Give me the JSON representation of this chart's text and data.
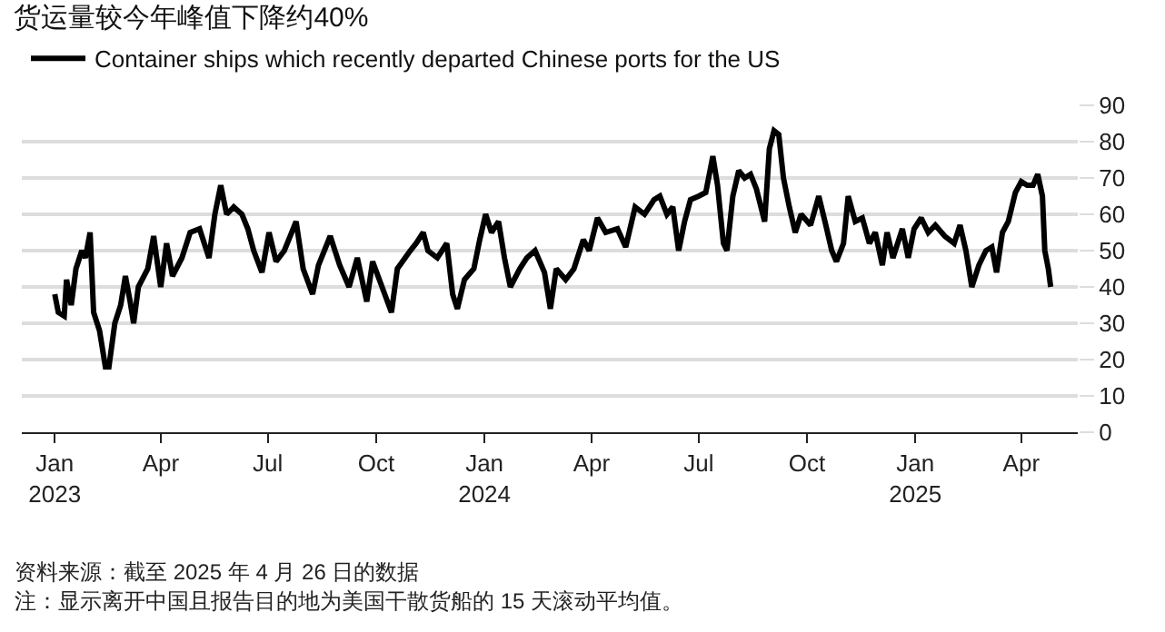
{
  "chart_data": {
    "type": "line",
    "title": "货运量较今年峰值下降约40%",
    "x": [
      "2023-01-01",
      "2023-01-04",
      "2023-01-09",
      "2023-01-11",
      "2023-01-15",
      "2023-01-19",
      "2023-01-24",
      "2023-01-27",
      "2023-01-31",
      "2023-02-03",
      "2023-02-08",
      "2023-02-13",
      "2023-02-16",
      "2023-02-21",
      "2023-02-26",
      "2023-03-02",
      "2023-03-06",
      "2023-03-09",
      "2023-03-13",
      "2023-03-21",
      "2023-03-26",
      "2023-04-01",
      "2023-04-06",
      "2023-04-11",
      "2023-04-19",
      "2023-04-26",
      "2023-05-04",
      "2023-05-12",
      "2023-05-17",
      "2023-05-22",
      "2023-05-27",
      "2023-06-02",
      "2023-06-09",
      "2023-06-14",
      "2023-06-19",
      "2023-06-26",
      "2023-07-02",
      "2023-07-08",
      "2023-07-15",
      "2023-07-25",
      "2023-07-31",
      "2023-08-08",
      "2023-08-13",
      "2023-08-23",
      "2023-08-31",
      "2023-09-08",
      "2023-09-15",
      "2023-09-23",
      "2023-09-28",
      "2023-10-06",
      "2023-10-14",
      "2023-10-19",
      "2023-10-30",
      "2023-11-04",
      "2023-11-10",
      "2023-11-14",
      "2023-11-22",
      "2023-11-30",
      "2023-12-05",
      "2023-12-09",
      "2023-12-15",
      "2023-12-23",
      "2023-12-28",
      "2024-01-02",
      "2024-01-07",
      "2024-01-13",
      "2024-01-18",
      "2024-01-23",
      "2024-01-31",
      "2024-02-06",
      "2024-02-13",
      "2024-02-21",
      "2024-02-26",
      "2024-03-02",
      "2024-03-10",
      "2024-03-17",
      "2024-03-25",
      "2024-03-30",
      "2024-04-06",
      "2024-04-13",
      "2024-04-23",
      "2024-04-30",
      "2024-05-08",
      "2024-05-16",
      "2024-05-24",
      "2024-05-29",
      "2024-06-04",
      "2024-06-09",
      "2024-06-14",
      "2024-06-19",
      "2024-06-24",
      "2024-07-01",
      "2024-07-07",
      "2024-07-13",
      "2024-07-17",
      "2024-07-22",
      "2024-07-25",
      "2024-07-30",
      "2024-08-04",
      "2024-08-09",
      "2024-08-14",
      "2024-08-19",
      "2024-08-26",
      "2024-08-30",
      "2024-09-03",
      "2024-09-07",
      "2024-09-11",
      "2024-09-16",
      "2024-09-21",
      "2024-09-26",
      "2024-10-04",
      "2024-10-11",
      "2024-10-17",
      "2024-10-22",
      "2024-10-26",
      "2024-11-01",
      "2024-11-05",
      "2024-11-11",
      "2024-11-17",
      "2024-11-23",
      "2024-11-28",
      "2024-12-04",
      "2024-12-08",
      "2024-12-13",
      "2024-12-21",
      "2024-12-26",
      "2024-12-31",
      "2025-01-06",
      "2025-01-12",
      "2025-01-18",
      "2025-01-26",
      "2025-02-03",
      "2025-02-08",
      "2025-02-13",
      "2025-02-18",
      "2025-02-24",
      "2025-03-02",
      "2025-03-07",
      "2025-03-11",
      "2025-03-16",
      "2025-03-21",
      "2025-03-27",
      "2025-04-01",
      "2025-04-06",
      "2025-04-11",
      "2025-04-15",
      "2025-04-19",
      "2025-04-21",
      "2025-04-24",
      "2025-04-26"
    ],
    "series": [
      {
        "name": "Container ships which recently departed Chinese ports for the US",
        "color": "#000000",
        "values": [
          38,
          33,
          32,
          42,
          35,
          45,
          50,
          48,
          55,
          33,
          28,
          18,
          18,
          30,
          35,
          43,
          36,
          30,
          40,
          45,
          54,
          40,
          52,
          43,
          48,
          55,
          56,
          48,
          60,
          68,
          60,
          62,
          60,
          56,
          50,
          44,
          55,
          47,
          50,
          58,
          45,
          38,
          46,
          54,
          46,
          40,
          48,
          36,
          47,
          40,
          33,
          45,
          50,
          52,
          55,
          50,
          48,
          52,
          38,
          34,
          42,
          45,
          53,
          60,
          55,
          58,
          48,
          40,
          45,
          48,
          50,
          44,
          34,
          45,
          42,
          45,
          53,
          50,
          59,
          55,
          56,
          51,
          62,
          60,
          64,
          65,
          60,
          62,
          50,
          58,
          64,
          65,
          66,
          76,
          68,
          52,
          50,
          65,
          72,
          70,
          71,
          67,
          58,
          78,
          83,
          82,
          70,
          62,
          55,
          60,
          57,
          65,
          57,
          50,
          47,
          52,
          65,
          58,
          59,
          52,
          55,
          46,
          55,
          48,
          56,
          48,
          56,
          59,
          55,
          57,
          54,
          52,
          57,
          50,
          40,
          46,
          50,
          51,
          44,
          55,
          58,
          66,
          69,
          68,
          68,
          71,
          65,
          50,
          45,
          40
        ]
      }
    ],
    "xlim": [
      "2022-12-04",
      "2025-05-19"
    ],
    "xticks": [
      {
        "value": "2023-01-01",
        "label": "Jan\n2023"
      },
      {
        "value": "2023-04-01",
        "label": "Apr"
      },
      {
        "value": "2023-07-01",
        "label": "Jul"
      },
      {
        "value": "2023-10-01",
        "label": "Oct"
      },
      {
        "value": "2024-01-01",
        "label": "Jan\n2024"
      },
      {
        "value": "2024-04-01",
        "label": "Apr"
      },
      {
        "value": "2024-07-01",
        "label": "Jul"
      },
      {
        "value": "2024-10-01",
        "label": "Oct"
      },
      {
        "value": "2025-01-01",
        "label": "Jan\n2025"
      },
      {
        "value": "2025-04-01",
        "label": "Apr"
      }
    ],
    "ylim": [
      0,
      90
    ],
    "yticks": [
      0,
      10,
      20,
      30,
      40,
      50,
      60,
      70,
      80,
      90
    ],
    "grid": "y",
    "legend": "top left",
    "line_style": "solid",
    "annotations": [
      "资料来源：截至 2025 年 4 月 26 日的数据",
      "注：显示离开中国且报告目的地为美国干散货船的 15 天滚动平均值。"
    ]
  }
}
